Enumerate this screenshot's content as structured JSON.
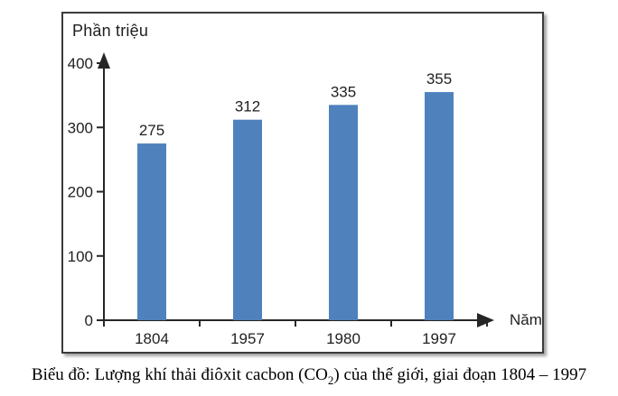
{
  "figure": {
    "unit_label": "Phần triệu"
  },
  "caption": {
    "prefix": "Biểu đồ: Lượng khí thải điôxit cacbon (CO",
    "subscript": "2",
    "suffix": ") của thế giới, giai đoạn 1804 – 1997"
  },
  "chart_data": {
    "type": "bar",
    "title": "Biểu đồ: Lượng khí thải điôxit cacbon (CO2) của thế giới, giai đoạn 1804 – 1997",
    "categories": [
      "1804",
      "1957",
      "1980",
      "1997"
    ],
    "values": [
      275,
      312,
      335,
      355
    ],
    "xlabel": "Năm",
    "ylabel": "Phần triệu",
    "ylim": [
      0,
      400
    ],
    "yticks": [
      0,
      100,
      200,
      300,
      400
    ],
    "grid": false,
    "legend": null,
    "data_labels": true,
    "bar_color": "#4F81BD",
    "axis_color": "#262626",
    "text_color": "#1f1f1f"
  }
}
